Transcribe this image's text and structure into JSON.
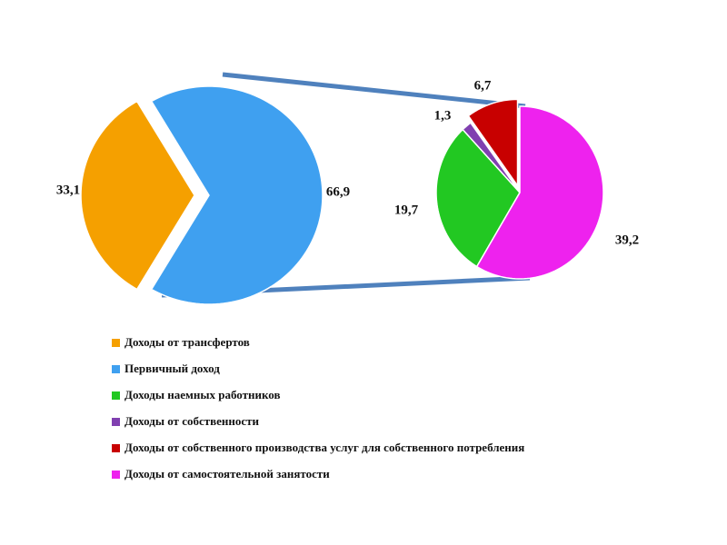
{
  "chart_data": [
    {
      "type": "pie",
      "categories": [
        "Доходы от трансфертов",
        "Первичный доход"
      ],
      "values": [
        33.1,
        66.9
      ],
      "value_labels": [
        "33,1",
        "66,9"
      ],
      "colors": [
        "#f5a000",
        "#3fa0f0"
      ]
    },
    {
      "type": "pie",
      "categories": [
        "Доходы наемных работников",
        "Доходы от собственности",
        "Доходы от собственного производства услуг для собственного потребления",
        "Доходы от самостоятельной занятости"
      ],
      "values": [
        19.7,
        1.3,
        6.7,
        39.2
      ],
      "value_labels": [
        "19,7",
        "1,3",
        "6,7",
        "39,2"
      ],
      "colors": [
        "#22c822",
        "#8040b0",
        "#c80000",
        "#ee22ee"
      ]
    }
  ]
}
